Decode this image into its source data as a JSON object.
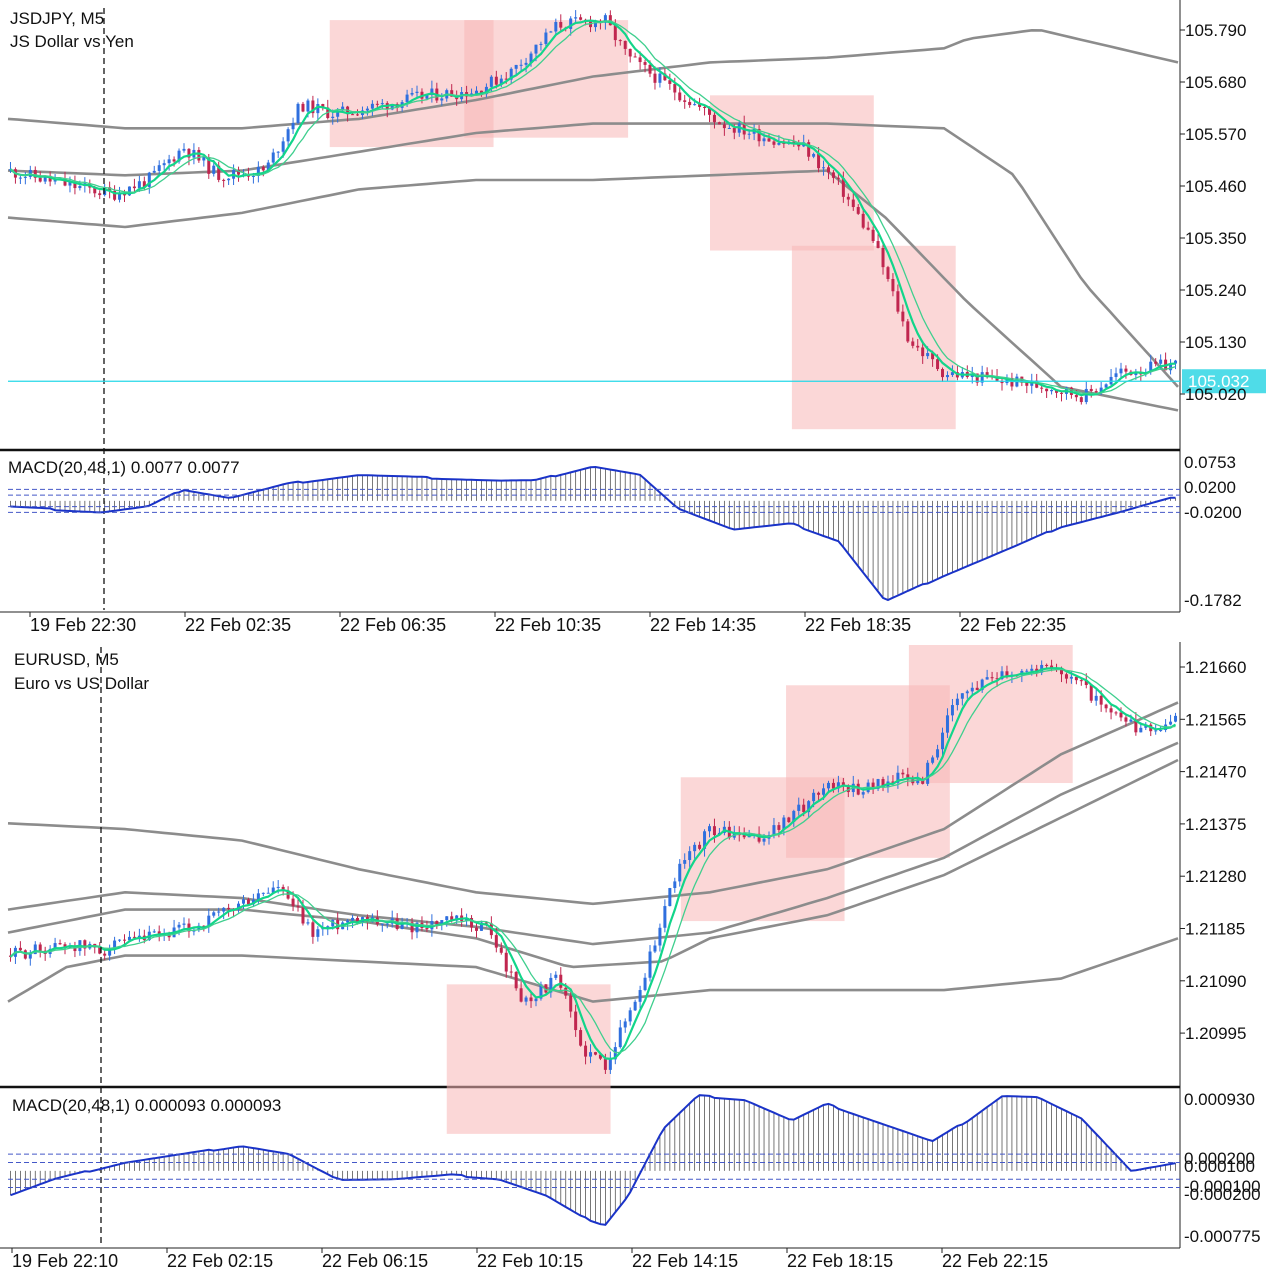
{
  "chart_data": [
    {
      "type": "candlestick",
      "symbol_line": "JSDJPY, M5",
      "description": "JS Dollar vs Yen",
      "timeframe": "M5",
      "y_axis_labels": [
        "105.790",
        "105.680",
        "105.570",
        "105.460",
        "105.350",
        "105.240",
        "105.130",
        "105.020"
      ],
      "ylim": [
        104.89,
        105.83
      ],
      "current_price": 105.032,
      "current_price_label": "105.032",
      "x_axis_labels": [
        "19 Feb 22:30",
        "22 Feb 02:35",
        "22 Feb 06:35",
        "22 Feb 10:35",
        "22 Feb 14:35",
        "22 Feb 18:35",
        "22 Feb 22:35"
      ],
      "price_path": [
        [
          0,
          105.48
        ],
        [
          0.05,
          105.45
        ],
        [
          0.09,
          105.43
        ],
        [
          0.12,
          105.46
        ],
        [
          0.15,
          105.53
        ],
        [
          0.18,
          105.47
        ],
        [
          0.22,
          105.48
        ],
        [
          0.25,
          105.62
        ],
        [
          0.28,
          105.6
        ],
        [
          0.32,
          105.62
        ],
        [
          0.36,
          105.64
        ],
        [
          0.4,
          105.65
        ],
        [
          0.43,
          105.69
        ],
        [
          0.47,
          105.79
        ],
        [
          0.51,
          105.8
        ],
        [
          0.53,
          105.72
        ],
        [
          0.57,
          105.65
        ],
        [
          0.61,
          105.58
        ],
        [
          0.65,
          105.55
        ],
        [
          0.68,
          105.53
        ],
        [
          0.71,
          105.45
        ],
        [
          0.74,
          105.33
        ],
        [
          0.77,
          105.12
        ],
        [
          0.8,
          105.05
        ],
        [
          0.83,
          105.04
        ],
        [
          0.86,
          105.03
        ],
        [
          0.89,
          105.02
        ],
        [
          0.92,
          105.0
        ],
        [
          0.95,
          105.05
        ],
        [
          1.0,
          105.07
        ]
      ],
      "bollinger": {
        "upper": [
          [
            0,
            105.59
          ],
          [
            0.1,
            105.57
          ],
          [
            0.2,
            105.57
          ],
          [
            0.3,
            105.59
          ],
          [
            0.4,
            105.63
          ],
          [
            0.5,
            105.68
          ],
          [
            0.6,
            105.71
          ],
          [
            0.7,
            105.72
          ],
          [
            0.8,
            105.74
          ],
          [
            0.82,
            105.76
          ],
          [
            0.88,
            105.78
          ],
          [
            1.0,
            105.71
          ]
        ],
        "middle": [
          [
            0,
            105.48
          ],
          [
            0.1,
            105.47
          ],
          [
            0.2,
            105.48
          ],
          [
            0.3,
            105.52
          ],
          [
            0.4,
            105.56
          ],
          [
            0.5,
            105.58
          ],
          [
            0.6,
            105.58
          ],
          [
            0.7,
            105.58
          ],
          [
            0.8,
            105.57
          ],
          [
            0.86,
            105.47
          ],
          [
            0.92,
            105.24
          ],
          [
            1.0,
            105.02
          ]
        ],
        "lower": [
          [
            0,
            105.38
          ],
          [
            0.1,
            105.36
          ],
          [
            0.2,
            105.39
          ],
          [
            0.3,
            105.44
          ],
          [
            0.4,
            105.46
          ],
          [
            0.5,
            105.46
          ],
          [
            0.6,
            105.47
          ],
          [
            0.7,
            105.48
          ],
          [
            0.75,
            105.38
          ],
          [
            0.82,
            105.2
          ],
          [
            0.9,
            105.02
          ],
          [
            1.0,
            104.97
          ]
        ]
      },
      "highlight_zones": [
        {
          "x0": 0.275,
          "x1": 0.415,
          "y0": 105.8,
          "y1": 105.53
        },
        {
          "x0": 0.39,
          "x1": 0.53,
          "y0": 105.8,
          "y1": 105.55
        },
        {
          "x0": 0.6,
          "x1": 0.74,
          "y0": 105.64,
          "y1": 105.31
        },
        {
          "x0": 0.67,
          "x1": 0.81,
          "y0": 105.32,
          "y1": 104.93
        }
      ],
      "macd": {
        "label": "MACD(20,48,1) 0.0077 0.0077",
        "y_axis_labels": [
          "0.0753",
          "0.0200",
          "-0.0200",
          "-0.1782"
        ],
        "ylim": [
          -0.19,
          0.085
        ],
        "values": [
          [
            0,
            -0.01
          ],
          [
            0.08,
            -0.02
          ],
          [
            0.12,
            -0.01
          ],
          [
            0.15,
            0.02
          ],
          [
            0.19,
            0.005
          ],
          [
            0.24,
            0.03
          ],
          [
            0.3,
            0.045
          ],
          [
            0.36,
            0.04
          ],
          [
            0.42,
            0.035
          ],
          [
            0.45,
            0.035
          ],
          [
            0.5,
            0.06
          ],
          [
            0.54,
            0.045
          ],
          [
            0.57,
            -0.01
          ],
          [
            0.62,
            -0.05
          ],
          [
            0.67,
            -0.04
          ],
          [
            0.71,
            -0.07
          ],
          [
            0.75,
            -0.175
          ],
          [
            0.8,
            -0.13
          ],
          [
            0.86,
            -0.08
          ],
          [
            0.9,
            -0.045
          ],
          [
            0.95,
            -0.02
          ],
          [
            1.0,
            0.0077
          ]
        ],
        "dashed_levels": [
          0.02,
          0.01,
          -0.01,
          -0.02
        ]
      }
    },
    {
      "type": "candlestick",
      "symbol_line": "EURUSD, M5",
      "description": "Euro vs US Dollar",
      "timeframe": "M5",
      "y_axis_labels": [
        "1.21660",
        "1.21565",
        "1.21470",
        "1.21375",
        "1.21280",
        "1.21185",
        "1.21090",
        "1.20995"
      ],
      "ylim": [
        1.20935,
        1.217
      ],
      "x_axis_labels": [
        "19 Feb 22:10",
        "22 Feb 02:15",
        "22 Feb 06:15",
        "22 Feb 10:15",
        "22 Feb 14:15",
        "22 Feb 18:15",
        "22 Feb 22:15"
      ],
      "price_path": [
        [
          0,
          1.2116
        ],
        [
          0.05,
          1.2118
        ],
        [
          0.08,
          1.2117
        ],
        [
          0.12,
          1.2119
        ],
        [
          0.16,
          1.2121
        ],
        [
          0.2,
          1.2125
        ],
        [
          0.23,
          1.2128
        ],
        [
          0.26,
          1.212
        ],
        [
          0.3,
          1.2123
        ],
        [
          0.34,
          1.2121
        ],
        [
          0.38,
          1.2122
        ],
        [
          0.41,
          1.2121
        ],
        [
          0.44,
          1.2108
        ],
        [
          0.47,
          1.2112
        ],
        [
          0.49,
          1.21
        ],
        [
          0.51,
          1.2097
        ],
        [
          0.54,
          1.211
        ],
        [
          0.57,
          1.213
        ],
        [
          0.6,
          1.2138
        ],
        [
          0.64,
          1.2136
        ],
        [
          0.67,
          1.214
        ],
        [
          0.7,
          1.2146
        ],
        [
          0.73,
          1.2145
        ],
        [
          0.76,
          1.2147
        ],
        [
          0.78,
          1.2146
        ],
        [
          0.81,
          1.216
        ],
        [
          0.84,
          1.2165
        ],
        [
          0.88,
          1.2166
        ],
        [
          0.91,
          1.2165
        ],
        [
          0.94,
          1.2158
        ],
        [
          0.97,
          1.2155
        ],
        [
          1.0,
          1.2157
        ]
      ],
      "bollinger": {
        "upper": [
          [
            0,
            1.2139
          ],
          [
            0.1,
            1.2138
          ],
          [
            0.2,
            1.2136
          ],
          [
            0.3,
            1.2131
          ],
          [
            0.4,
            1.2127
          ],
          [
            0.5,
            1.2125
          ],
          [
            0.6,
            1.2127
          ],
          [
            0.7,
            1.2131
          ],
          [
            0.8,
            1.2138
          ],
          [
            0.9,
            1.2151
          ],
          [
            1.0,
            1.216
          ]
        ],
        "middle": [
          [
            0,
            1.2124
          ],
          [
            0.1,
            1.2127
          ],
          [
            0.2,
            1.2126
          ],
          [
            0.3,
            1.2123
          ],
          [
            0.4,
            1.2121
          ],
          [
            0.5,
            1.2118
          ],
          [
            0.6,
            1.212
          ],
          [
            0.7,
            1.2126
          ],
          [
            0.8,
            1.2133
          ],
          [
            0.9,
            1.2144
          ],
          [
            1.0,
            1.2153
          ]
        ],
        "lower": [
          [
            0,
            1.2108
          ],
          [
            0.05,
            1.2114
          ],
          [
            0.1,
            1.2116
          ],
          [
            0.2,
            1.2116
          ],
          [
            0.3,
            1.2115
          ],
          [
            0.4,
            1.2114
          ],
          [
            0.5,
            1.2108
          ],
          [
            0.6,
            1.211
          ],
          [
            0.7,
            1.211
          ],
          [
            0.8,
            1.211
          ],
          [
            0.9,
            1.2112
          ],
          [
            1.0,
            1.2119
          ]
        ],
        "mid_extra": [
          [
            0,
            1.212
          ],
          [
            0.1,
            1.2124
          ],
          [
            0.2,
            1.2124
          ],
          [
            0.3,
            1.2122
          ],
          [
            0.4,
            1.2119
          ],
          [
            0.48,
            1.2114
          ],
          [
            0.56,
            1.2115
          ],
          [
            0.6,
            1.2119
          ],
          [
            0.7,
            1.2123
          ],
          [
            0.8,
            1.213
          ],
          [
            0.9,
            1.214
          ],
          [
            1.0,
            1.215
          ]
        ]
      },
      "highlight_zones": [
        {
          "x0": 0.375,
          "x1": 0.515,
          "y0": 1.2111,
          "y1": 1.2085
        },
        {
          "x0": 0.575,
          "x1": 0.715,
          "y0": 1.2147,
          "y1": 1.2122
        },
        {
          "x0": 0.665,
          "x1": 0.805,
          "y0": 1.2163,
          "y1": 1.2133
        },
        {
          "x0": 0.77,
          "x1": 0.91,
          "y0": 1.217,
          "y1": 1.2146
        }
      ],
      "macd": {
        "label": "MACD(20,48,1) 0.000093 0.000093",
        "y_axis_labels": [
          "0.000930",
          "0.000200",
          "0.000100",
          "-0.000100",
          "-0.000200",
          "-0.000775"
        ],
        "ylim": [
          -0.0009,
          0.00098
        ],
        "values": [
          [
            0,
            -0.0003
          ],
          [
            0.04,
            -0.0001
          ],
          [
            0.1,
            0.0001
          ],
          [
            0.15,
            0.0002
          ],
          [
            0.2,
            0.0003
          ],
          [
            0.24,
            0.0002
          ],
          [
            0.28,
            -0.0001
          ],
          [
            0.33,
            -0.0001
          ],
          [
            0.38,
            -5e-05
          ],
          [
            0.42,
            -0.0001
          ],
          [
            0.46,
            -0.0003
          ],
          [
            0.49,
            -0.00055
          ],
          [
            0.51,
            -0.00065
          ],
          [
            0.53,
            -0.0003
          ],
          [
            0.56,
            0.0005
          ],
          [
            0.59,
            0.0009
          ],
          [
            0.63,
            0.00085
          ],
          [
            0.67,
            0.0006
          ],
          [
            0.7,
            0.0008
          ],
          [
            0.74,
            0.0006
          ],
          [
            0.79,
            0.00035
          ],
          [
            0.82,
            0.0006
          ],
          [
            0.85,
            0.0009
          ],
          [
            0.88,
            0.00088
          ],
          [
            0.92,
            0.0006
          ],
          [
            0.96,
            0.0
          ],
          [
            1.0,
            9.3e-05
          ]
        ],
        "dashed_levels": [
          0.0002,
          0.0001,
          -0.0001,
          -0.0002
        ]
      }
    }
  ],
  "colors": {
    "bull": "#2f6fde",
    "bear": "#c0264f",
    "ma_fast": "#12d58a",
    "ma_slow": "#3fcf8e",
    "bands": "#8c8c8c",
    "zone": "#f8b6b6",
    "macd_line": "#1a33c8",
    "histogram": "#555555",
    "price_line": "#26d8e8",
    "price_label_bg": "#4fdce8",
    "dashed": "#4458c8"
  }
}
